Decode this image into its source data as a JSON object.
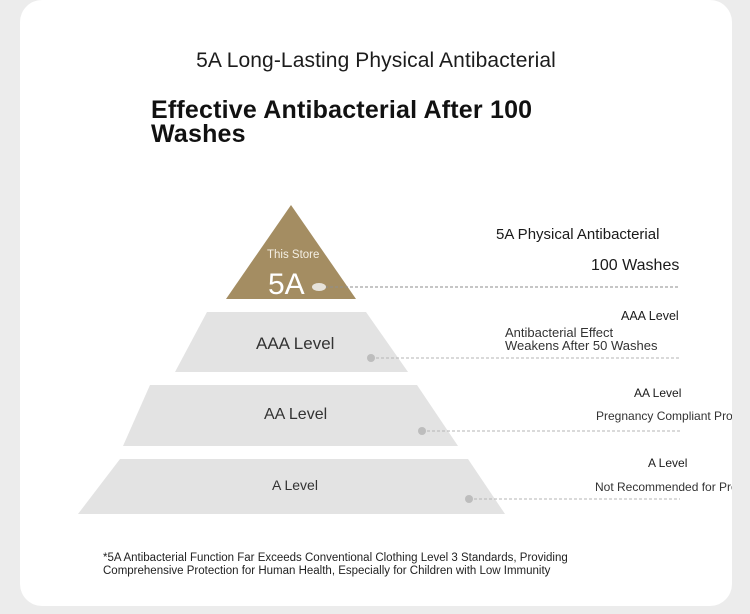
{
  "header": {
    "headline": "5A Long-Lasting Physical Antibacterial",
    "title": "Effective Antibacterial After 100 Washes"
  },
  "pyramid": {
    "top": {
      "tag": "This Store",
      "label": "5A"
    },
    "levels": [
      {
        "label": "AAA Level"
      },
      {
        "label": "AA Level"
      },
      {
        "label": "A Level"
      }
    ]
  },
  "annotations": [
    {
      "title": "5A Physical Antibacterial",
      "detail": "100 Washes"
    },
    {
      "title": "AAA Level",
      "detail_line1": "Antibacterial Effect",
      "detail_line2": "Weakens After 50 Washes"
    },
    {
      "title": "AA Level",
      "detail": "Pregnancy Compliant Produc"
    },
    {
      "title": "A Level",
      "detail": "Not Recommended for Pregn"
    }
  ],
  "footnote": {
    "line1": "*5A Antibacterial Function Far Exceeds Conventional Clothing Level 3 Standards, Providing",
    "line2": "Comprehensive Protection for Human Health, Especially for Children with Low Immunity"
  },
  "colors": {
    "background": "#ececec",
    "card": "#ffffff",
    "gold": "#a48d62",
    "tier": "#e3e3e3",
    "leader": "#9a9a9a"
  }
}
